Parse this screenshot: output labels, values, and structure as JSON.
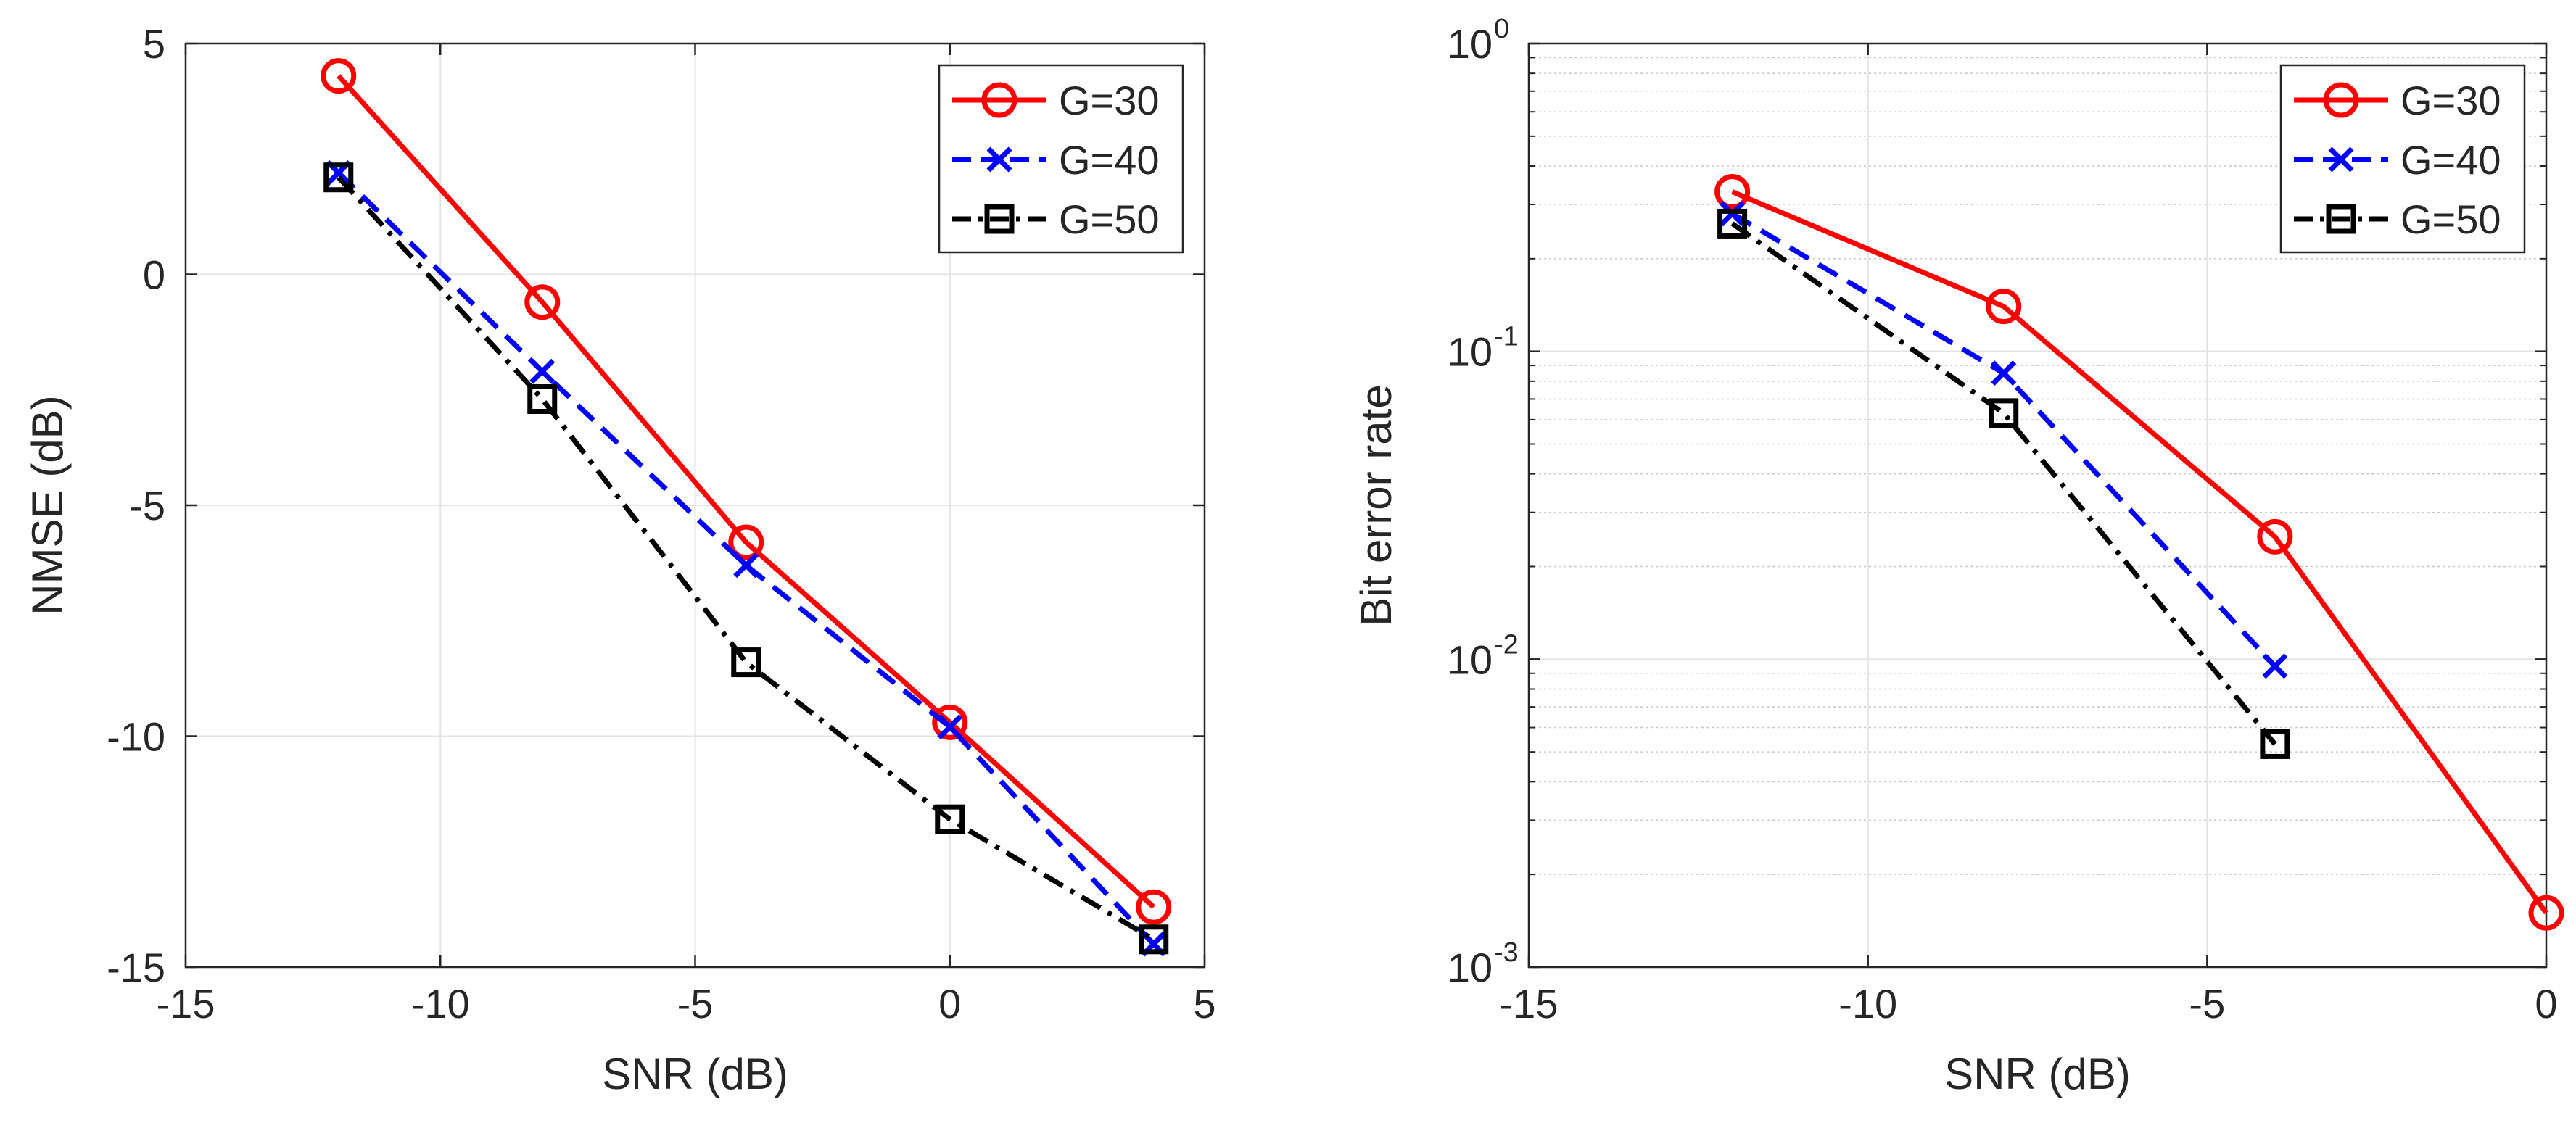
{
  "chart_data": [
    {
      "type": "line",
      "xlabel": "SNR (dB)",
      "ylabel": "NMSE (dB)",
      "xlim": [
        -15,
        5
      ],
      "ylim": [
        -15,
        5
      ],
      "xticks": [
        -15,
        -10,
        -5,
        0,
        5
      ],
      "yticks": [
        -15,
        -10,
        -5,
        0,
        5
      ],
      "xtick_labels": [
        "-15",
        "-10",
        "-5",
        "0",
        "5"
      ],
      "ytick_labels": [
        "-15",
        "-10",
        "-5",
        "0",
        "5"
      ],
      "yscale": "linear",
      "grid": true,
      "legend_position": "top-right",
      "series": [
        {
          "name": "G=30",
          "color": "#ff0000",
          "line": "solid",
          "marker": "circle",
          "x": [
            -12,
            -8,
            -4,
            0,
            4
          ],
          "y": [
            4.3,
            -0.6,
            -5.8,
            -9.7,
            -13.7
          ]
        },
        {
          "name": "G=40",
          "color": "#0000ff",
          "line": "dashed",
          "marker": "x",
          "x": [
            -12,
            -8,
            -4,
            0,
            4
          ],
          "y": [
            2.2,
            -2.1,
            -6.3,
            -9.8,
            -14.5
          ]
        },
        {
          "name": "G=50",
          "color": "#000000",
          "line": "dashdot",
          "marker": "square",
          "x": [
            -12,
            -8,
            -4,
            0,
            4
          ],
          "y": [
            2.1,
            -2.7,
            -8.4,
            -11.8,
            -14.4
          ]
        }
      ]
    },
    {
      "type": "line",
      "xlabel": "SNR (dB)",
      "ylabel": "Bit error rate",
      "xlim": [
        -15,
        0
      ],
      "ylim": [
        0.001,
        1
      ],
      "xticks": [
        -15,
        -10,
        -5,
        0
      ],
      "xtick_labels": [
        "-15",
        "-10",
        "-5",
        "0"
      ],
      "yticks": [
        0.001,
        0.01,
        0.1,
        1
      ],
      "ytick_labels": [
        {
          "base": "10",
          "exp": "-3"
        },
        {
          "base": "10",
          "exp": "-2"
        },
        {
          "base": "10",
          "exp": "-1"
        },
        {
          "base": "10",
          "exp": "0"
        }
      ],
      "yscale": "log",
      "grid": true,
      "legend_position": "top-right",
      "series": [
        {
          "name": "G=30",
          "color": "#ff0000",
          "line": "solid",
          "marker": "circle",
          "x": [
            -12,
            -8,
            -4,
            0
          ],
          "y": [
            0.33,
            0.14,
            0.025,
            0.0015
          ]
        },
        {
          "name": "G=40",
          "color": "#0000ff",
          "line": "dashed",
          "marker": "x",
          "x": [
            -12,
            -8,
            -4
          ],
          "y": [
            0.28,
            0.085,
            0.0095
          ]
        },
        {
          "name": "G=50",
          "color": "#000000",
          "line": "dashdot",
          "marker": "square",
          "x": [
            -12,
            -8,
            -4
          ],
          "y": [
            0.26,
            0.063,
            0.0053
          ]
        }
      ]
    }
  ]
}
